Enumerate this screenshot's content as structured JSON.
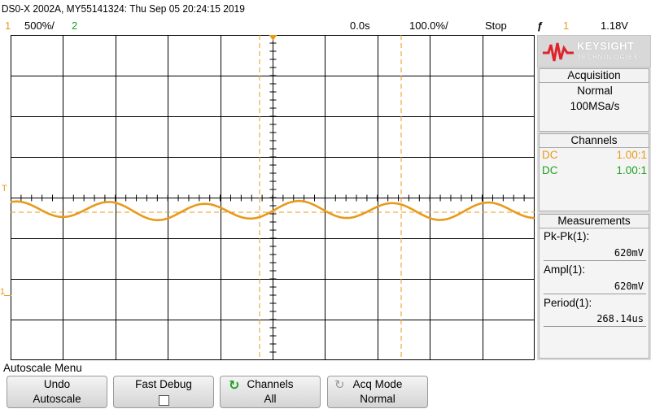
{
  "title": "DS0-X 2002A, MY55141324: Thu Sep 05 20:24:15 2019",
  "status": {
    "ch1_num": "1",
    "ch1_scale": "500%/",
    "ch2_num": "2",
    "time_position": "0.0s",
    "time_scale": "100.0%/",
    "run_state": "Stop",
    "trigger_icon": "ƒ",
    "trigger_source": "1",
    "trigger_level": "1.18V"
  },
  "markers": {
    "trigger_level": "T",
    "ground_ch1": "1"
  },
  "logo": {
    "brand": "KEYSIGHT",
    "tagline": "TECHNOLOGIES"
  },
  "acquisition": {
    "header": "Acquisition",
    "mode": "Normal",
    "rate": "100MSa/s"
  },
  "channels": {
    "header": "Channels",
    "rows": [
      {
        "coupling": "DC",
        "ratio": "1.00:1"
      },
      {
        "coupling": "DC",
        "ratio": "1.00:1"
      }
    ]
  },
  "measurements": {
    "header": "Measurements",
    "items": [
      {
        "label": "Pk-Pk(1):",
        "value": "620mV"
      },
      {
        "label": "Ampl(1):",
        "value": "620mV"
      },
      {
        "label": "Period(1):",
        "value": "268.14us"
      }
    ]
  },
  "menu": {
    "title": "Autoscale Menu",
    "softkeys": [
      {
        "line1": "Undo",
        "line2": "Autoscale"
      },
      {
        "line1": "Fast Debug",
        "line2": ""
      },
      {
        "line1": "Channels",
        "line2": "All"
      },
      {
        "line1": "Acq Mode",
        "line2": "Normal"
      }
    ]
  },
  "colors": {
    "ch1": "#e89a1c",
    "ch2": "#1fa01f",
    "grid": "#000000"
  },
  "waveform": {
    "amplitude_v": 0.31,
    "period_us": 268.14
  }
}
